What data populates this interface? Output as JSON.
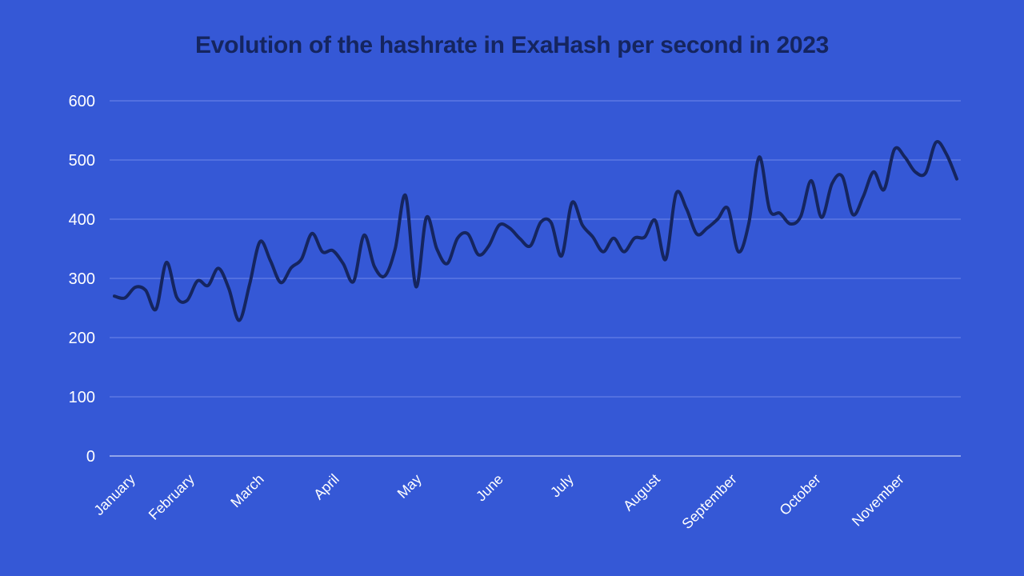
{
  "chart_data": {
    "type": "line",
    "title": "Evolution of the hashrate in ExaHash per second in 2023",
    "xlabel": "",
    "ylabel": "",
    "ylim": [
      0,
      600
    ],
    "yticks": [
      0,
      100,
      200,
      300,
      400,
      500,
      600
    ],
    "grid": true,
    "legend": "none",
    "x_tick_labels": [
      "January",
      "February",
      "March",
      "April",
      "May",
      "June",
      "July",
      "August",
      "September",
      "October",
      "November"
    ],
    "x_tick_positions": [
      0,
      7.5,
      15.5,
      23.5,
      31.5,
      39.5,
      47.5,
      55.5,
      63.5,
      71.5,
      79.5
    ],
    "x_range": [
      0,
      88
    ],
    "series": [
      {
        "name": "",
        "color": "#15255f",
        "values": [
          270,
          267,
          285,
          280,
          248,
          327,
          268,
          263,
          296,
          288,
          317,
          283,
          229,
          290,
          362,
          330,
          293,
          318,
          333,
          376,
          345,
          347,
          325,
          295,
          373,
          320,
          304,
          350,
          440,
          286,
          403,
          350,
          325,
          368,
          375,
          340,
          355,
          390,
          385,
          367,
          355,
          395,
          394,
          338,
          428,
          390,
          370,
          345,
          368,
          345,
          368,
          370,
          398,
          332,
          443,
          418,
          375,
          385,
          400,
          418,
          345,
          393,
          505,
          416,
          410,
          392,
          405,
          465,
          403,
          460,
          472,
          408,
          438,
          480,
          450,
          518,
          505,
          480,
          478,
          530,
          510,
          468
        ]
      }
    ]
  }
}
